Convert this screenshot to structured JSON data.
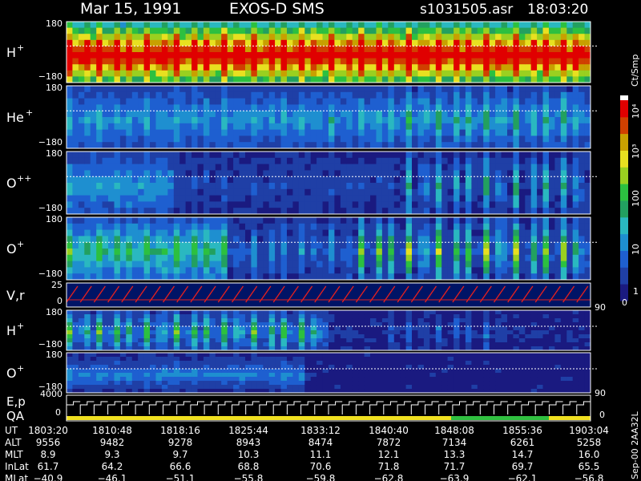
{
  "header": {
    "date": "Mar 15, 1991",
    "mission": "EXOS-D SMS",
    "file": "s1031505.asr",
    "time": "18:03:20"
  },
  "colorbar": {
    "unit": "Ct/Smp",
    "labels": [
      "10⁴",
      "10³",
      "100",
      "10",
      "1",
      "0"
    ]
  },
  "chart_data": {
    "type": "heatmap",
    "title": "Mar 15, 1991   EXOS-D SMS",
    "x_ticks": [
      "1803:20",
      "1810:48",
      "1818:16",
      "1825:44",
      "1833:12",
      "1840:40",
      "1848:08",
      "1855:36",
      "1903:04"
    ],
    "panels": [
      {
        "label": "H",
        "charge": "+",
        "ymax": "180",
        "ymin": "−180"
      },
      {
        "label": "He",
        "charge": "+",
        "ymax": "180",
        "ymin": "−180"
      },
      {
        "label": "O",
        "charge": "++",
        "ymax": "180",
        "ymin": "−180"
      },
      {
        "label": "O",
        "charge": "+",
        "ymax": "180",
        "ymin": "−180"
      },
      {
        "label": "V,r",
        "charge": "",
        "ymax": "25",
        "ymin": "0",
        "right": "90"
      },
      {
        "label": "H",
        "charge": "+",
        "ymax": "180",
        "ymin": "−180"
      },
      {
        "label": "O",
        "charge": "+",
        "ymax": "180",
        "ymin": "−180",
        "right": "90"
      }
    ],
    "ep_panel": {
      "label1": "E,p",
      "label2": "QA",
      "ymax": "4000",
      "ymin": "0",
      "right": "0"
    },
    "colorscale": "counts per sample, log scale 1 to 10^4",
    "ephemeris": {
      "rows": [
        {
          "name": "UT",
          "values": [
            "1803:20",
            "1810:48",
            "1818:16",
            "1825:44",
            "1833:12",
            "1840:40",
            "1848:08",
            "1855:36",
            "1903:04"
          ]
        },
        {
          "name": "ALT",
          "values": [
            "9556",
            "9482",
            "9278",
            "8943",
            "8474",
            "7872",
            "7134",
            "6261",
            "5258"
          ]
        },
        {
          "name": "MLT",
          "values": [
            "8.9",
            "9.3",
            "9.7",
            "10.3",
            "11.1",
            "12.1",
            "13.3",
            "14.7",
            "16.0"
          ]
        },
        {
          "name": "InLat",
          "values": [
            "61.7",
            "64.2",
            "66.6",
            "68.8",
            "70.6",
            "71.8",
            "71.7",
            "69.7",
            "65.5"
          ]
        },
        {
          "name": "MLat",
          "values": [
            "−40.9",
            "−46.1",
            "−51.1",
            "−55.8",
            "−59.8",
            "−62.8",
            "−63.9",
            "−62.1",
            "−56.8"
          ]
        }
      ]
    }
  },
  "footer_note": "Sep-00  2AA32L"
}
